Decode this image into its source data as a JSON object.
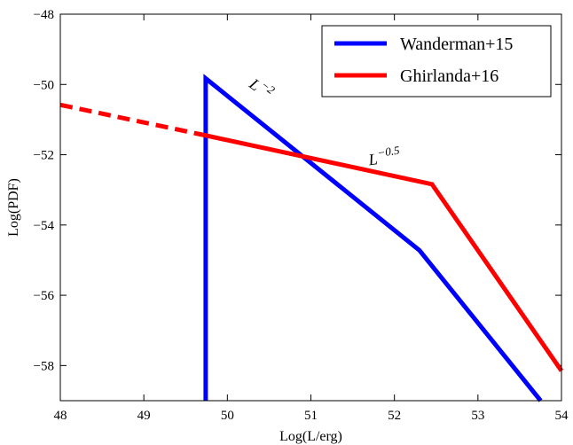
{
  "chart_data": {
    "type": "line",
    "xlabel": "Log(L/erg)",
    "ylabel": "Log(PDF)",
    "xlim": [
      48,
      54
    ],
    "ylim": [
      -59,
      -48
    ],
    "xticks": [
      48,
      49,
      50,
      51,
      52,
      53,
      54
    ],
    "yticks": [
      -48,
      -50,
      -52,
      -54,
      -56,
      -58
    ],
    "xtick_labels": [
      "48",
      "49",
      "50",
      "51",
      "52",
      "53",
      "54"
    ],
    "ytick_labels": [
      "−48",
      "−50",
      "−52",
      "−54",
      "−56",
      "−58"
    ],
    "grid": false,
    "legend_position": "top-right",
    "series": [
      {
        "name": "Wanderman+15",
        "color": "#0000ff",
        "style": "solid",
        "x": [
          49.74,
          49.74,
          52.3,
          53.75
        ],
        "y": [
          -59,
          -49.83,
          -54.72,
          -59
        ]
      },
      {
        "name": "Ghirlanda+16",
        "color": "#ff0000",
        "style": "solid",
        "x": [
          49.7,
          52.45,
          54.0
        ],
        "y": [
          -51.43,
          -52.84,
          -58.15
        ],
        "dashed_extension": {
          "x": [
            48.0,
            49.7
          ],
          "y": [
            -50.58,
            -51.43
          ]
        }
      }
    ],
    "annotations": [
      {
        "base": "L",
        "exponent": "−2",
        "x": 50.25,
        "y": -50.05,
        "rotation": 37
      },
      {
        "base": "L",
        "exponent": "−0.5",
        "x": 51.7,
        "y": -52.3,
        "rotation": -8
      }
    ]
  }
}
